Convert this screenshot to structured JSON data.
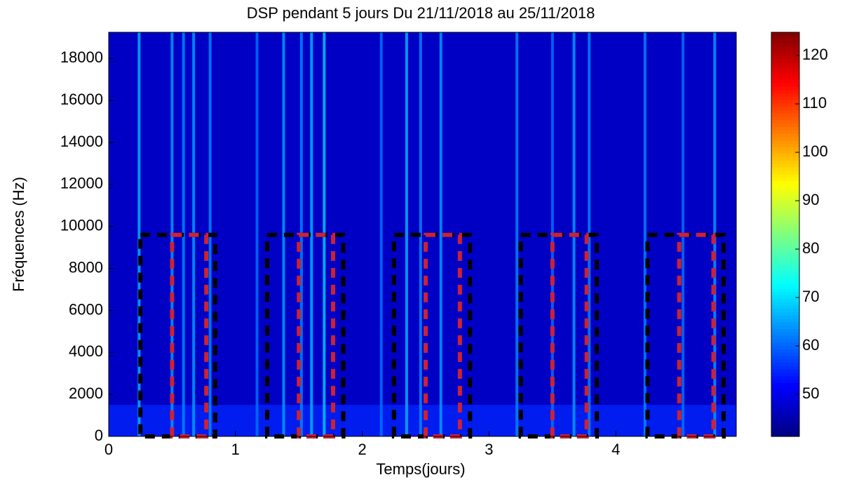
{
  "chart_data": {
    "type": "spectrogram",
    "title": "DSP pendant 5 jours Du 21/11/2018 au 25/11/2018",
    "xlabel": "Temps(jours)",
    "ylabel": "Fréquences (Hz)",
    "xlim": [
      0,
      4.95
    ],
    "xticks": [
      0,
      1,
      2,
      3,
      4
    ],
    "ylim": [
      0,
      19250
    ],
    "yticks": [
      0,
      2000,
      4000,
      6000,
      8000,
      10000,
      12000,
      14000,
      16000,
      18000
    ],
    "colormap": "jet",
    "clim": [
      41.3,
      124.8
    ],
    "cticks": [
      50,
      60,
      70,
      80,
      90,
      100,
      110,
      120
    ],
    "background_level": 47,
    "low_band": {
      "ylim": [
        0,
        1500
      ],
      "level": 55
    },
    "x": [
      0.24,
      0.5,
      0.59,
      0.67,
      0.8,
      1.17,
      1.38,
      1.52,
      1.6,
      1.7,
      2.15,
      2.35,
      2.46,
      2.62,
      3.22,
      3.5,
      3.67,
      3.79,
      4.23,
      4.53,
      4.78
    ],
    "values": [
      68,
      66,
      64,
      66,
      64,
      62,
      66,
      64,
      68,
      70,
      62,
      68,
      64,
      66,
      64,
      62,
      66,
      64,
      64,
      62,
      66
    ],
    "regions": [
      {
        "x0": 0.25,
        "x1": 0.84,
        "y1": 9600,
        "color": "#000000"
      },
      {
        "x0": 0.5,
        "x1": 0.77,
        "y1": 9600,
        "color": "#cc2233"
      },
      {
        "x0": 1.25,
        "x1": 1.85,
        "y1": 9600,
        "color": "#000000"
      },
      {
        "x0": 1.5,
        "x1": 1.77,
        "y1": 9600,
        "color": "#cc2233"
      },
      {
        "x0": 2.25,
        "x1": 2.85,
        "y1": 9600,
        "color": "#000000"
      },
      {
        "x0": 2.5,
        "x1": 2.77,
        "y1": 9600,
        "color": "#cc2233"
      },
      {
        "x0": 3.25,
        "x1": 3.85,
        "y1": 9600,
        "color": "#000000"
      },
      {
        "x0": 3.5,
        "x1": 3.77,
        "y1": 9600,
        "color": "#cc2233"
      },
      {
        "x0": 4.25,
        "x1": 4.85,
        "y1": 9600,
        "color": "#000000"
      },
      {
        "x0": 4.5,
        "x1": 4.77,
        "y1": 9600,
        "color": "#cc2233"
      }
    ]
  }
}
